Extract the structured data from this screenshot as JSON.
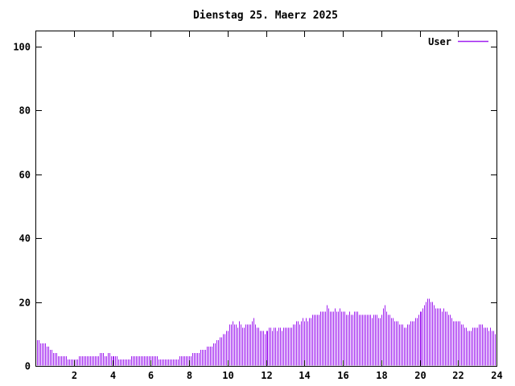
{
  "chart_data": {
    "type": "bar",
    "bar_style": "impulses",
    "title": "Dienstag 25. Maerz 2025",
    "xlabel": "",
    "ylabel": "",
    "x_unit": "hour_of_day",
    "interval_minutes": 5,
    "xlim": [
      0,
      24
    ],
    "ylim": [
      0,
      105
    ],
    "x_ticks": [
      2,
      4,
      6,
      8,
      10,
      12,
      14,
      16,
      18,
      20,
      22,
      24
    ],
    "y_ticks": [
      0,
      20,
      40,
      60,
      80,
      100
    ],
    "grid": false,
    "legend_position": "top-right-inside",
    "background_color": "#ffffff",
    "axis_color": "#000000",
    "series": [
      {
        "name": "User",
        "color": "#a020f0",
        "values": [
          8,
          8,
          7,
          7,
          7,
          7,
          6,
          6,
          5,
          5,
          4,
          4,
          4,
          3,
          3,
          3,
          3,
          3,
          3,
          2,
          2,
          2,
          2,
          2,
          2,
          2,
          3,
          3,
          3,
          3,
          3,
          3,
          3,
          3,
          3,
          3,
          3,
          3,
          3,
          4,
          4,
          4,
          3,
          3,
          4,
          4,
          3,
          3,
          3,
          3,
          3,
          2,
          2,
          2,
          2,
          2,
          2,
          2,
          2,
          3,
          3,
          3,
          3,
          3,
          3,
          3,
          3,
          3,
          3,
          3,
          3,
          3,
          3,
          3,
          3,
          3,
          2,
          2,
          2,
          2,
          2,
          2,
          2,
          2,
          2,
          2,
          2,
          2,
          2,
          3,
          3,
          3,
          3,
          3,
          3,
          3,
          3,
          4,
          4,
          4,
          4,
          4,
          5,
          5,
          5,
          5,
          6,
          6,
          6,
          6,
          7,
          7,
          8,
          8,
          9,
          9,
          10,
          10,
          11,
          11,
          13,
          13,
          14,
          13,
          13,
          12,
          14,
          13,
          12,
          12,
          13,
          13,
          13,
          13,
          14,
          15,
          13,
          12,
          12,
          11,
          11,
          11,
          10,
          11,
          11,
          12,
          12,
          11,
          12,
          12,
          11,
          12,
          12,
          11,
          12,
          12,
          12,
          12,
          12,
          12,
          13,
          13,
          14,
          14,
          13,
          14,
          15,
          14,
          15,
          14,
          15,
          15,
          16,
          16,
          16,
          16,
          16,
          17,
          17,
          17,
          17,
          19,
          18,
          17,
          17,
          17,
          18,
          17,
          17,
          18,
          17,
          17,
          17,
          16,
          16,
          17,
          16,
          16,
          17,
          17,
          17,
          16,
          16,
          16,
          16,
          16,
          16,
          16,
          16,
          15,
          16,
          16,
          16,
          15,
          15,
          16,
          18,
          19,
          17,
          16,
          16,
          15,
          15,
          14,
          14,
          14,
          13,
          13,
          13,
          12,
          12,
          13,
          13,
          14,
          14,
          14,
          15,
          15,
          16,
          17,
          17,
          18,
          19,
          20,
          21,
          21,
          20,
          20,
          19,
          18,
          18,
          18,
          18,
          17,
          18,
          17,
          17,
          16,
          16,
          15,
          14,
          14,
          14,
          14,
          14,
          13,
          13,
          12,
          12,
          11,
          11,
          11,
          12,
          12,
          12,
          12,
          13,
          13,
          13,
          12,
          12,
          12,
          11,
          12,
          11,
          11,
          10,
          10
        ]
      }
    ]
  }
}
